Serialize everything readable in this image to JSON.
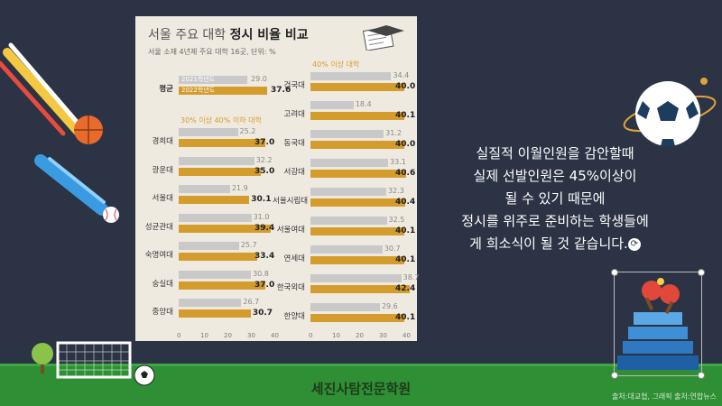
{
  "panel": {
    "title_light": "서울 주요 대학",
    "title_bold": "정시 비율 비교",
    "subtitle": "서울 소재 4년제 주요 대학 16곳, 단위: %"
  },
  "legend": {
    "y2021": "2021학년도",
    "y2022": "2022학년도"
  },
  "average": {
    "label": "평균",
    "v2021": "29.0",
    "v2022": "37.6"
  },
  "sections": {
    "mid": "30% 이상 40% 이하 대학",
    "high": "40% 이상 대학"
  },
  "chart_data": {
    "type": "bar",
    "title": "서울 주요 대학 정시 비율 비교",
    "subtitle": "서울 소재 4년제 주요 대학 16곳, 단위: %",
    "xlim": [
      0,
      40
    ],
    "series_names": [
      "2021학년도",
      "2022학년도"
    ],
    "left": [
      {
        "name": "경희대",
        "v2021": 25.2,
        "v2022": 37.0
      },
      {
        "name": "광운대",
        "v2021": 32.2,
        "v2022": 35.0
      },
      {
        "name": "서울대",
        "v2021": 21.9,
        "v2022": 30.1
      },
      {
        "name": "성균관대",
        "v2021": 31.0,
        "v2022": 39.4
      },
      {
        "name": "숙명여대",
        "v2021": 25.7,
        "v2022": 33.4
      },
      {
        "name": "숭실대",
        "v2021": 30.8,
        "v2022": 37.0
      },
      {
        "name": "중앙대",
        "v2021": 26.7,
        "v2022": 30.7
      }
    ],
    "right": [
      {
        "name": "건국대",
        "v2021": 34.4,
        "v2022": 40.0
      },
      {
        "name": "고려대",
        "v2021": 18.4,
        "v2022": 40.1
      },
      {
        "name": "동국대",
        "v2021": 31.2,
        "v2022": 40.0
      },
      {
        "name": "서강대",
        "v2021": 33.1,
        "v2022": 40.6
      },
      {
        "name": "서울시립대",
        "v2021": 32.3,
        "v2022": 40.4
      },
      {
        "name": "서울여대",
        "v2021": 32.5,
        "v2022": 40.1
      },
      {
        "name": "연세대",
        "v2021": 30.7,
        "v2022": 40.1
      },
      {
        "name": "한국외대",
        "v2021": 38.7,
        "v2022": 42.4
      },
      {
        "name": "한양대",
        "v2021": 29.6,
        "v2022": 40.1
      }
    ],
    "axis_ticks": [
      "0",
      "10",
      "20",
      "30",
      "40"
    ],
    "colors": {
      "y2021": "#c9c9c9",
      "y2022": "#d49b2d"
    }
  },
  "message": [
    "실질적 이월인원을 감안할때",
    "실제 선발인원은 45%이상이",
    "될 수 있기 때문에",
    "정시를 위주로 준비하는 학생들에",
    "게 희소식이 될 것 같습니다."
  ],
  "footer": {
    "title": "세진사탐전문학원",
    "source": "출처:대교협, 그래픽 출처:연합뉴스"
  },
  "icons": [
    "soccer-ball-icon",
    "basketball-icon",
    "baseball-icon",
    "goal-icon",
    "tree-icon",
    "ping-pong-icon",
    "refresh-icon",
    "document-icon"
  ]
}
